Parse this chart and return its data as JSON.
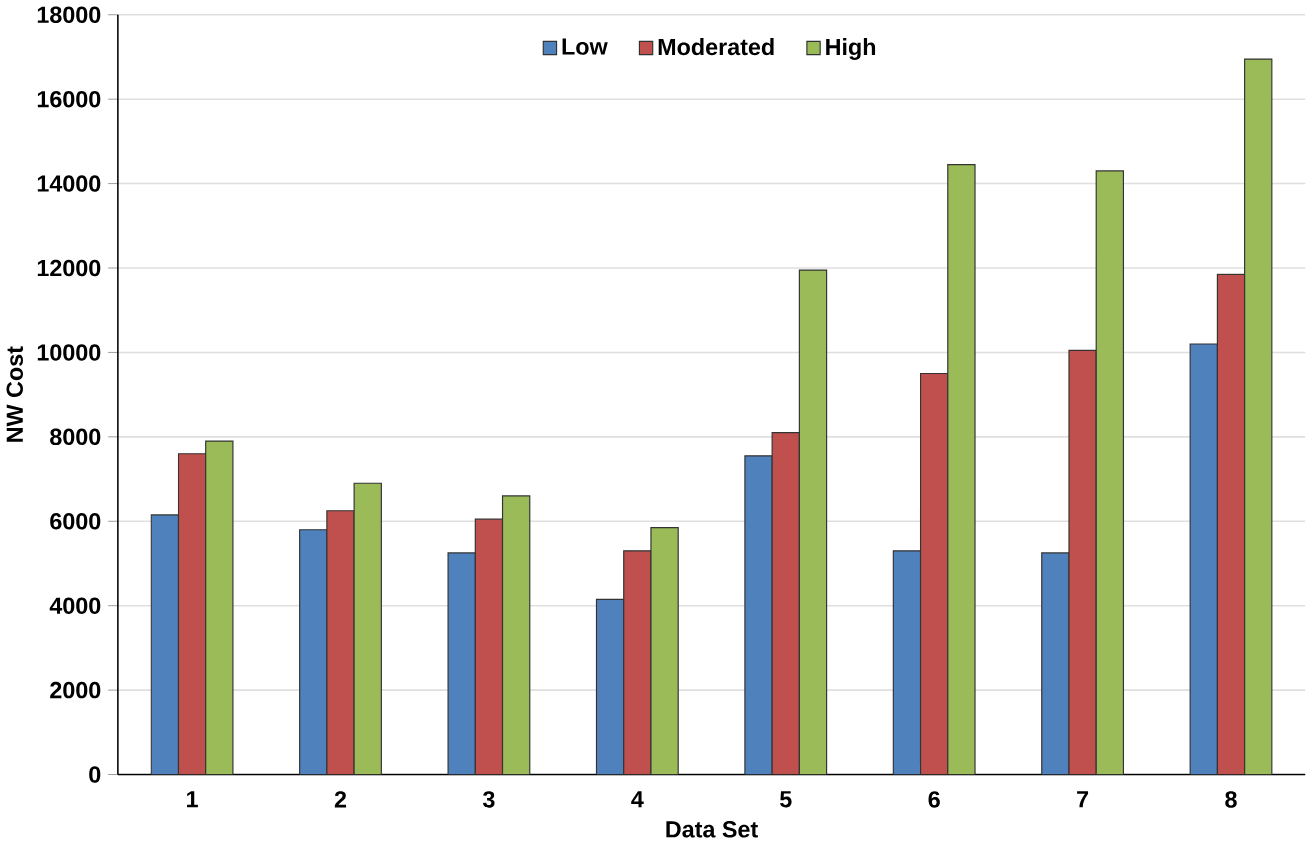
{
  "chart_data": {
    "type": "bar",
    "xlabel": "Data Set",
    "ylabel": "NW Cost",
    "categories": [
      "1",
      "2",
      "3",
      "4",
      "5",
      "6",
      "7",
      "8"
    ],
    "series": [
      {
        "name": "Low",
        "color": "#4f81bd",
        "values": [
          6150,
          5800,
          5250,
          4150,
          7550,
          5300,
          5250,
          10200
        ]
      },
      {
        "name": "Moderated",
        "color": "#c0504d",
        "values": [
          7600,
          6250,
          6050,
          5300,
          8100,
          9500,
          10050,
          11850
        ]
      },
      {
        "name": "High",
        "color": "#9bbb59",
        "values": [
          7900,
          6900,
          6600,
          5850,
          11950,
          14450,
          14300,
          16950
        ]
      }
    ],
    "ylim": [
      0,
      18000
    ],
    "yticks": [
      0,
      2000,
      4000,
      6000,
      8000,
      10000,
      12000,
      14000,
      16000,
      18000
    ],
    "grid": "y",
    "legend": "top"
  }
}
